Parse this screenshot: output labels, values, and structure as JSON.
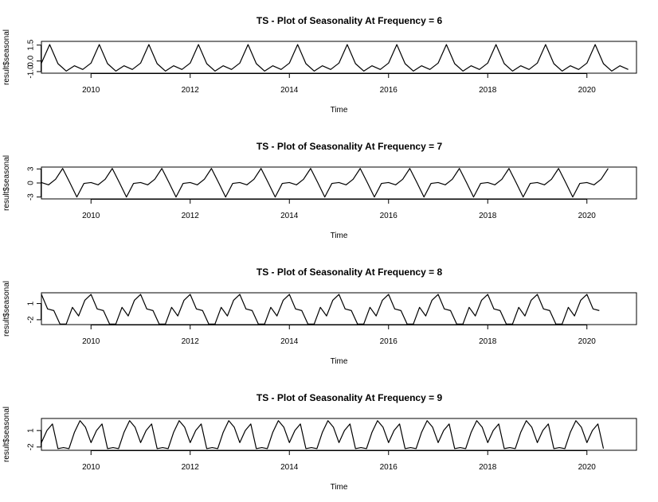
{
  "chart_data": [
    {
      "type": "line",
      "title": "TS - Plot of Seasonality At Frequency = 6",
      "xlabel": "Time",
      "ylabel": "result$seasonal",
      "xlim": [
        2009.0,
        2021.0
      ],
      "ylim": [
        -1.15,
        1.85
      ],
      "x_start": 2009.0,
      "frequency": 6,
      "n_points": 72,
      "pattern": [
        -0.2,
        1.55,
        -0.25,
        -0.95,
        -0.45,
        -0.8
      ],
      "x_ticks": [
        2010,
        2012,
        2014,
        2016,
        2018,
        2020
      ],
      "x_tick_labels": [
        "2010",
        "2012",
        "2014",
        "2016",
        "2018",
        "2020"
      ],
      "y_ticks": [
        -1.0,
        0.0,
        1.5
      ],
      "y_tick_labels": [
        "-1.0",
        "0.0",
        "1.5"
      ]
    },
    {
      "type": "line",
      "title": "TS - Plot of Seasonality At Frequency = 7",
      "xlabel": "Time",
      "ylabel": "result$seasonal",
      "xlim": [
        2009.0,
        2021.0
      ],
      "ylim": [
        -3.4,
        3.4
      ],
      "x_start": 2009.0,
      "frequency": 7,
      "n_points": 81,
      "pattern": [
        0.1,
        -0.4,
        0.8,
        3.1,
        0.1,
        -3.0,
        -0.1
      ],
      "x_ticks": [
        2010,
        2012,
        2014,
        2016,
        2018,
        2020
      ],
      "x_tick_labels": [
        "2010",
        "2012",
        "2014",
        "2016",
        "2018",
        "2020"
      ],
      "y_ticks": [
        -3,
        0,
        3
      ],
      "y_tick_labels": [
        "-3",
        "0",
        "3"
      ]
    },
    {
      "type": "line",
      "title": "TS - Plot of Seasonality At Frequency = 8",
      "xlabel": "Time",
      "ylabel": "result$seasonal",
      "xlim": [
        2009.0,
        2021.0
      ],
      "ylim": [
        -2.9,
        3.0
      ],
      "x_start": 2009.0,
      "frequency": 8,
      "n_points": 91,
      "pattern": [
        2.7,
        0.0,
        -0.3,
        -2.8,
        -2.8,
        0.3,
        -1.3,
        1.6
      ],
      "x_ticks": [
        2010,
        2012,
        2014,
        2016,
        2018,
        2020
      ],
      "x_tick_labels": [
        "2010",
        "2012",
        "2014",
        "2016",
        "2018",
        "2020"
      ],
      "y_ticks": [
        -2,
        1
      ],
      "y_tick_labels": [
        "-2",
        "1"
      ]
    },
    {
      "type": "line",
      "title": "TS - Plot of Seasonality At Frequency = 9",
      "xlabel": "Time",
      "ylabel": "result$seasonal",
      "xlim": [
        2009.0,
        2021.0
      ],
      "ylim": [
        -2.6,
        3.2
      ],
      "x_start": 2009.0,
      "frequency": 9,
      "n_points": 103,
      "pattern": [
        -1.2,
        1.0,
        2.2,
        -2.3,
        -2.1,
        -2.3,
        0.7,
        2.8,
        1.6
      ],
      "x_ticks": [
        2010,
        2012,
        2014,
        2016,
        2018,
        2020
      ],
      "x_tick_labels": [
        "2010",
        "2012",
        "2014",
        "2016",
        "2018",
        "2020"
      ],
      "y_ticks": [
        -2,
        1
      ],
      "y_tick_labels": [
        "-2",
        "1"
      ]
    }
  ]
}
